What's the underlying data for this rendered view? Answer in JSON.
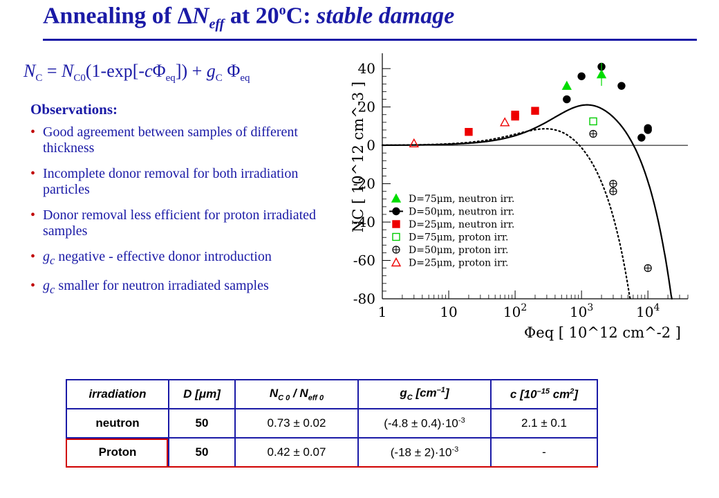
{
  "slide": {
    "title": "Annealing of ΔNeff at 20oC: stable damage",
    "title_parts": {
      "a": "Annealing of ",
      "delta": "Δ",
      "n": "N",
      "eff": "eff",
      "b": " at 20",
      "o": "o",
      "c": "C: ",
      "d": "stable damage"
    }
  },
  "formula": {
    "text": "NC = NC0(1-exp[-cΦeq]) + gC Φeq",
    "parts": {
      "n1": "N",
      "s1": "C",
      "eq": " = ",
      "n2": "N",
      "s2": "C0",
      "p1": "(1-exp[-",
      "c": "c",
      "phi1": "Φ",
      "s3": "eq",
      "p2": "]) + ",
      "g": "g",
      "s4": "C",
      "sp": " ",
      "phi2": "Φ",
      "s5": "eq"
    }
  },
  "observations": {
    "heading": "Observations:",
    "items": [
      {
        "text": "Good agreement between samples of different thickness"
      },
      {
        "text": "Incomplete donor removal for both irradiation particles"
      },
      {
        "text": "Donor removal less efficient for proton irradiated samples"
      },
      {
        "g": "g",
        "sub": "c",
        "text": " negative - effective donor introduction"
      },
      {
        "g": "g",
        "sub": "c",
        "text": " smaller for neutron irradiated samples"
      }
    ]
  },
  "chart_data": {
    "type": "scatter",
    "x_scale": "log",
    "xlim": [
      1,
      40000
    ],
    "ylim": [
      -80,
      48
    ],
    "xlabel": "Φeq [ 10^12 cm^-2 ]",
    "ylabel": "NC [ 10^12 cm^-3 ]",
    "x_ticks": [
      {
        "v": 1,
        "label": "1"
      },
      {
        "v": 10,
        "label": "10"
      },
      {
        "v": 100,
        "label": "10",
        "sup": "2"
      },
      {
        "v": 1000,
        "label": "10",
        "sup": "3"
      },
      {
        "v": 10000,
        "label": "10",
        "sup": "4"
      }
    ],
    "y_ticks": [
      "40",
      "20",
      "0",
      "-20",
      "-40",
      "-60",
      "-80"
    ],
    "y_tick_values": [
      40,
      20,
      0,
      -20,
      -40,
      -60,
      -80
    ],
    "series": [
      {
        "name": "D=75μm, neutron irr.",
        "marker": "triangle",
        "filled": true,
        "color": "#00dd00",
        "points": [
          [
            600,
            31
          ],
          [
            2000,
            37
          ]
        ]
      },
      {
        "name": "D=50μm, neutron irr.",
        "marker": "circle",
        "filled": true,
        "color": "#000000",
        "points": [
          [
            600,
            24
          ],
          [
            1000,
            36
          ],
          [
            2000,
            41
          ],
          [
            4000,
            31
          ],
          [
            8000,
            4
          ],
          [
            10000,
            8
          ],
          [
            10000,
            9
          ]
        ]
      },
      {
        "name": "D=25μm, neutron irr.",
        "marker": "square",
        "filled": true,
        "color": "#ee0000",
        "points": [
          [
            20,
            7
          ],
          [
            100,
            15
          ],
          [
            100,
            16
          ],
          [
            200,
            18
          ]
        ]
      },
      {
        "name": "D=75μm, proton irr.",
        "marker": "square",
        "filled": false,
        "color": "#00cc00",
        "points": [
          [
            1500,
            12.5
          ]
        ]
      },
      {
        "name": "D=50μm, proton irr.",
        "marker": "crosscircle",
        "filled": false,
        "color": "#000000",
        "points": [
          [
            1500,
            6
          ],
          [
            3000,
            -20
          ],
          [
            3000,
            -24
          ],
          [
            10000,
            -64
          ]
        ]
      },
      {
        "name": "D=25μm, proton irr.",
        "marker": "triangle",
        "filled": false,
        "color": "#ee0000",
        "points": [
          [
            3,
            1
          ],
          [
            70,
            12
          ]
        ]
      }
    ],
    "curves": [
      {
        "name": "neutron fit",
        "style": "solid",
        "nc0": 0.73,
        "c_e15": 2.1,
        "gc_e3": -4.8,
        "neff0": 40
      },
      {
        "name": "proton fit",
        "style": "dotted",
        "nc0": 0.42,
        "c_e15": 6.0,
        "gc_e3": -18,
        "neff0": 40
      }
    ]
  },
  "table": {
    "headers": [
      {
        "html": "irradiation"
      },
      {
        "main": "D [",
        "mu": "μ",
        "rest": "m]"
      },
      {
        "n": "N",
        "s1": "C 0",
        "mid": " / N",
        "s2": "eff 0"
      },
      {
        "g": "g",
        "s": "C",
        "rest": " [cm",
        "sup": "–1",
        "end": "]"
      },
      {
        "c": "c [10",
        "sup": "–15",
        "mid": " cm",
        "sup2": "2",
        "end": "]"
      }
    ],
    "rows": [
      {
        "irr": "neutron",
        "d": "50",
        "ratio": "0.73 ± 0.02",
        "gc": "(-4.8 ± 0.4)·10",
        "gc_exp": "-3",
        "c": "2.1  ± 0.1"
      },
      {
        "irr": "Proton",
        "d": "50",
        "ratio": "0.42 ± 0.07",
        "gc": "(-18 ± 2)·10",
        "gc_exp": "-3",
        "c": "-"
      }
    ]
  }
}
